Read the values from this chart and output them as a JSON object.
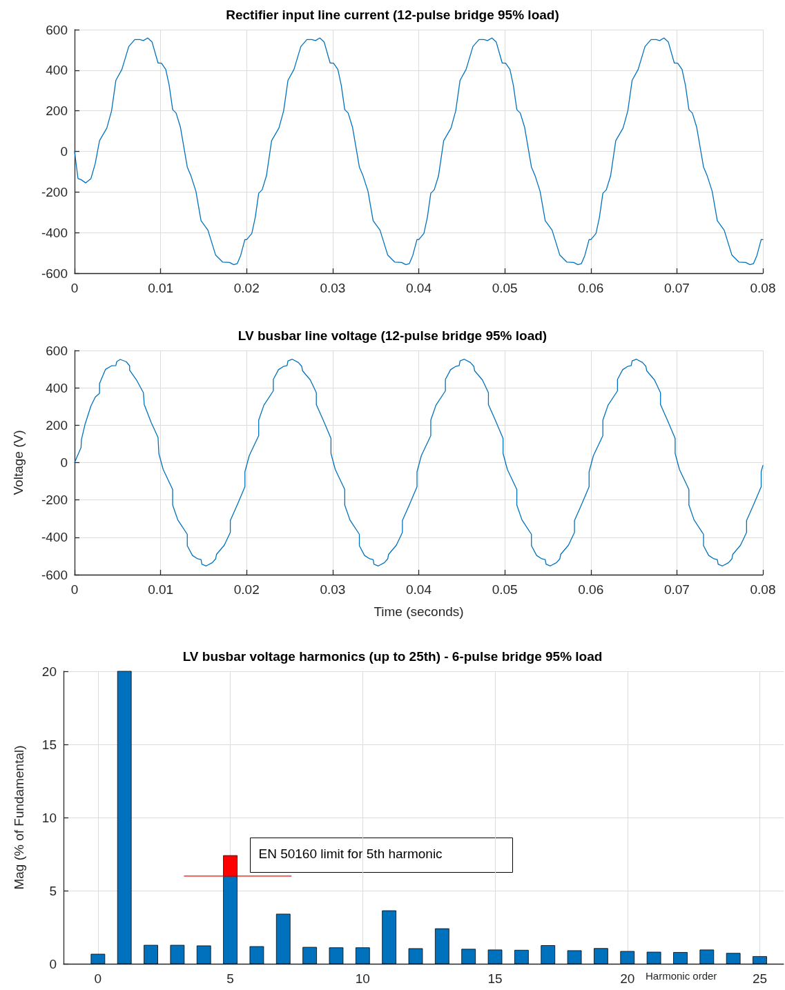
{
  "chart_data": [
    {
      "type": "line",
      "title": "Rectifier input line current (12-pulse bridge 95% load)",
      "x": [
        0,
        0.0004,
        0.00075,
        0.0013,
        0.0019,
        0.0024,
        0.0029,
        0.00375,
        0.0043,
        0.0048,
        0.0055,
        0.0063,
        0.007,
        0.0076,
        0.008,
        0.0085,
        0.009,
        0.0097,
        0.0101,
        0.0106,
        0.011,
        0.0114,
        0.0118,
        0.0123,
        0.0131,
        0.0135,
        0.0141,
        0.0147,
        0.0155,
        0.0164,
        0.0172,
        0.018,
        0.0185,
        0.0189,
        0.0193,
        0.0198,
        0.02,
        0.0206,
        0.021,
        0.0214,
        0.0218,
        0.0223,
        0.0229,
        0.02375,
        0.0243,
        0.0248,
        0.0255,
        0.0263,
        0.027,
        0.0276,
        0.028,
        0.0285,
        0.029,
        0.0297,
        0.0301,
        0.0306,
        0.031,
        0.0314,
        0.0318,
        0.0323,
        0.0331,
        0.0335,
        0.0341,
        0.0347,
        0.0355,
        0.0364,
        0.0372,
        0.038,
        0.0385,
        0.0389,
        0.0393,
        0.0398,
        0.04,
        0.0406,
        0.041,
        0.0414,
        0.0418,
        0.0423,
        0.0429,
        0.04375,
        0.0443,
        0.0448,
        0.0455,
        0.0463,
        0.047,
        0.0476,
        0.048,
        0.0485,
        0.049,
        0.0497,
        0.0501,
        0.0506,
        0.051,
        0.0514,
        0.0518,
        0.0523,
        0.0531,
        0.0535,
        0.0541,
        0.0547,
        0.0555,
        0.0564,
        0.0572,
        0.058,
        0.0585,
        0.0589,
        0.0593,
        0.0598,
        0.06,
        0.0606,
        0.061,
        0.0614,
        0.0618,
        0.0623,
        0.0629,
        0.06375,
        0.0643,
        0.0648,
        0.0655,
        0.0663,
        0.067,
        0.0676,
        0.068,
        0.0685,
        0.069,
        0.0697,
        0.0701,
        0.0706,
        0.071,
        0.0714,
        0.0718,
        0.0723,
        0.0731,
        0.0735,
        0.0741,
        0.0747,
        0.0755,
        0.0764,
        0.0772,
        0.078,
        0.0785,
        0.0789,
        0.0793,
        0.0798,
        0.08
      ],
      "series": [
        {
          "color": "#0072bd",
          "values": [
            0,
            -134,
            -139,
            -155,
            -134,
            -60,
            53,
            115,
            200,
            350,
            404,
            517,
            551,
            551,
            546,
            559,
            540,
            436,
            435,
            404,
            325,
            206,
            189,
            120,
            -77,
            -117,
            -196,
            -341,
            -388,
            -511,
            -545,
            -547,
            -558,
            -553,
            -513,
            -434,
            -435,
            -404,
            -325,
            -206,
            -189,
            -120,
            53,
            115,
            200,
            350,
            404,
            517,
            551,
            551,
            546,
            559,
            540,
            436,
            435,
            404,
            325,
            206,
            189,
            120,
            -77,
            -117,
            -196,
            -341,
            -388,
            -511,
            -545,
            -547,
            -558,
            -553,
            -513,
            -434,
            -435,
            -404,
            -325,
            -206,
            -189,
            -120,
            53,
            115,
            200,
            350,
            404,
            517,
            551,
            551,
            546,
            559,
            540,
            436,
            435,
            404,
            325,
            206,
            189,
            120,
            -77,
            -117,
            -196,
            -341,
            -388,
            -511,
            -545,
            -547,
            -558,
            -553,
            -513,
            -434,
            -435,
            -404,
            -325,
            -206,
            -189,
            -120,
            53,
            115,
            200,
            350,
            404,
            517,
            551,
            551,
            546,
            559,
            540,
            436,
            435,
            404,
            325,
            206,
            189,
            120,
            -77,
            -117,
            -196,
            -341,
            -388,
            -511,
            -545,
            -547,
            -558,
            -553,
            -513,
            -434,
            -435
          ]
        }
      ],
      "xlim": [
        0,
        0.08
      ],
      "xticks": [
        0,
        0.01,
        0.02,
        0.03,
        0.04,
        0.05,
        0.06,
        0.07,
        0.08
      ],
      "ylim": [
        -600,
        600
      ],
      "yticks": [
        -600,
        -400,
        -200,
        0,
        200,
        400,
        600
      ],
      "grid": true,
      "line_style": "solid"
    },
    {
      "type": "line",
      "title": "LV busbar line voltage (12-pulse bridge 95% load)",
      "xlabel": "Time (seconds)",
      "ylabel": "Voltage (V)",
      "x": [
        0,
        0.00075,
        0.0008,
        0.0012,
        0.0019,
        0.0024,
        0.0029,
        0.0029,
        0.0036,
        0.0043,
        0.0048,
        0.0049,
        0.0053,
        0.006,
        0.0064,
        0.0064,
        0.0072,
        0.008,
        0.0081,
        0.0089,
        0.0097,
        0.0098,
        0.0103,
        0.0114,
        0.0114,
        0.012,
        0.0131,
        0.0131,
        0.0137,
        0.0143,
        0.0147,
        0.0148,
        0.0153,
        0.016,
        0.0164,
        0.0165,
        0.0174,
        0.0181,
        0.0181,
        0.0189,
        0.0198,
        0.0198,
        0.0203,
        0.0214,
        0.0214,
        0.022,
        0.0231,
        0.0231,
        0.0237,
        0.0243,
        0.0247,
        0.0248,
        0.0253,
        0.026,
        0.0264,
        0.0265,
        0.0274,
        0.0281,
        0.0281,
        0.0289,
        0.0298,
        0.0298,
        0.0303,
        0.0314,
        0.0314,
        0.032,
        0.0331,
        0.0331,
        0.0337,
        0.0343,
        0.0347,
        0.0348,
        0.0353,
        0.036,
        0.0364,
        0.0365,
        0.0374,
        0.0381,
        0.0381,
        0.0389,
        0.0398,
        0.0398,
        0.0403,
        0.0414,
        0.0414,
        0.042,
        0.0431,
        0.0431,
        0.0437,
        0.0443,
        0.0447,
        0.0448,
        0.0453,
        0.046,
        0.0464,
        0.0465,
        0.0474,
        0.0481,
        0.0481,
        0.0489,
        0.0498,
        0.0498,
        0.0503,
        0.0514,
        0.0514,
        0.052,
        0.0531,
        0.0531,
        0.0537,
        0.0543,
        0.0547,
        0.0548,
        0.0553,
        0.056,
        0.0564,
        0.0565,
        0.0574,
        0.0581,
        0.0581,
        0.0589,
        0.0598,
        0.0598,
        0.0603,
        0.0614,
        0.0614,
        0.062,
        0.0631,
        0.0631,
        0.0637,
        0.0643,
        0.0647,
        0.0648,
        0.0653,
        0.066,
        0.0664,
        0.0665,
        0.0674,
        0.0681,
        0.0681,
        0.0689,
        0.0698,
        0.0698,
        0.0703,
        0.0714,
        0.0714,
        0.072,
        0.0731,
        0.0731,
        0.0737,
        0.0743,
        0.0747,
        0.0748,
        0.0753,
        0.076,
        0.0764,
        0.0765,
        0.0774,
        0.0781,
        0.0781,
        0.0789,
        0.0798,
        0.0798,
        0.08
      ],
      "series": [
        {
          "color": "#0072bd",
          "values": [
            0,
            80,
            123,
            202,
            303,
            350,
            371,
            423,
            499,
            518,
            519,
            540,
            552,
            540,
            518,
            494,
            442,
            374,
            310,
            215,
            135,
            47,
            -37,
            -144,
            -227,
            -307,
            -384,
            -445,
            -497,
            -515,
            -519,
            -544,
            -553,
            -536,
            -515,
            -491,
            -442,
            -374,
            -310,
            -227,
            -129,
            -49,
            37,
            144,
            227,
            307,
            384,
            445,
            497,
            515,
            519,
            544,
            553,
            536,
            515,
            491,
            442,
            374,
            310,
            227,
            129,
            49,
            -37,
            -144,
            -227,
            -307,
            -384,
            -445,
            -497,
            -515,
            -519,
            -544,
            -553,
            -536,
            -515,
            -491,
            -442,
            -374,
            -310,
            -227,
            -129,
            -49,
            37,
            144,
            227,
            307,
            384,
            445,
            497,
            515,
            519,
            544,
            553,
            536,
            515,
            491,
            442,
            374,
            310,
            227,
            129,
            49,
            -37,
            -144,
            -227,
            -307,
            -384,
            -445,
            -497,
            -515,
            -519,
            -544,
            -553,
            -536,
            -515,
            -491,
            -442,
            -374,
            -310,
            -227,
            -129,
            -49,
            37,
            144,
            227,
            307,
            384,
            445,
            497,
            515,
            519,
            544,
            553,
            536,
            515,
            491,
            442,
            374,
            310,
            227,
            129,
            49,
            -37,
            -144,
            -227,
            -307,
            -384,
            -445,
            -497,
            -515,
            -519,
            -544,
            -553,
            -536,
            -515,
            -491,
            -442,
            -374,
            -310,
            -227,
            -129,
            -49,
            -15
          ]
        }
      ],
      "xlim": [
        0,
        0.08
      ],
      "xticks": [
        0,
        0.01,
        0.02,
        0.03,
        0.04,
        0.05,
        0.06,
        0.07,
        0.08
      ],
      "ylim": [
        -600,
        600
      ],
      "yticks": [
        -600,
        -400,
        -200,
        0,
        200,
        400,
        600
      ],
      "grid": true,
      "line_style": "solid"
    },
    {
      "type": "bar",
      "title": "LV busbar voltage harmonics (up to 25th) - 6-pulse bridge 95% load",
      "xlabel": "Harmonic order",
      "ylabel": "Mag (% of Fundamental)",
      "x": [
        0,
        1,
        2,
        3,
        4,
        5,
        6,
        7,
        8,
        9,
        10,
        11,
        12,
        13,
        14,
        15,
        16,
        17,
        18,
        19,
        20,
        21,
        22,
        23,
        24,
        25
      ],
      "stacked": true,
      "series": [
        {
          "color": "#0072bd",
          "values": [
            0.66,
            20,
            1.27,
            1.27,
            1.23,
            6,
            1.18,
            3.4,
            1.13,
            1.1,
            1.1,
            3.63,
            1.04,
            2.4,
            1.0,
            0.95,
            0.93,
            1.25,
            0.9,
            1.05,
            0.85,
            0.8,
            0.78,
            0.95,
            0.72,
            0.5
          ]
        },
        {
          "color": "#ff0000",
          "values": [
            null,
            null,
            null,
            null,
            null,
            1.4,
            null,
            null,
            null,
            null,
            null,
            null,
            null,
            null,
            null,
            null,
            null,
            null,
            null,
            null,
            null,
            null,
            null,
            null,
            null,
            null
          ]
        },
        {
          "type": "line",
          "color": "#ff0000",
          "x": [
            3.26,
            7.3
          ],
          "values": [
            6,
            6
          ]
        }
      ],
      "annotations": [
        "EN 50160 limit for 5th harmonic"
      ],
      "xlim": [
        -1.3,
        25.9
      ],
      "xticks": [
        0,
        5,
        10,
        15,
        20,
        25
      ],
      "ylim": [
        0,
        20
      ],
      "yticks": [
        0,
        5,
        10,
        15,
        20
      ],
      "grid": true
    }
  ]
}
